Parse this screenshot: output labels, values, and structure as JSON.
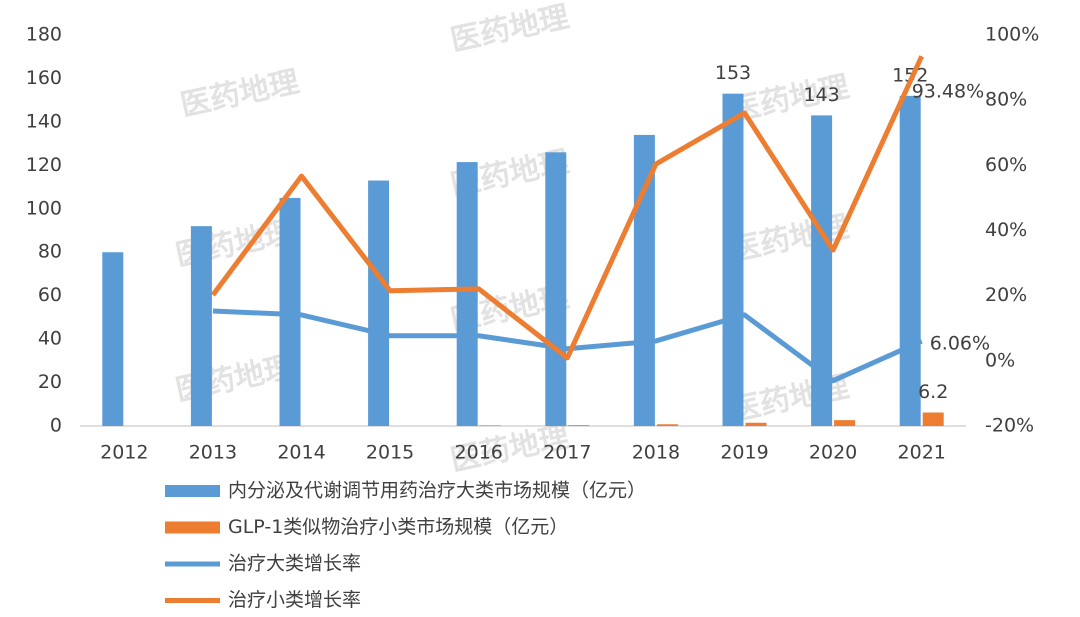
{
  "chart_data": {
    "type": "bar",
    "watermark": "医药地理",
    "categories": [
      "2012",
      "2013",
      "2014",
      "2015",
      "2016",
      "2017",
      "2018",
      "2019",
      "2020",
      "2021"
    ],
    "ylim": [
      0,
      180
    ],
    "yticks": [
      0,
      20,
      40,
      60,
      80,
      100,
      120,
      140,
      160,
      180
    ],
    "y2lim": [
      -20,
      100
    ],
    "y2ticks": [
      {
        "value": -20,
        "label": "-20%"
      },
      {
        "value": 0,
        "label": "0%"
      },
      {
        "value": 20,
        "label": "20%"
      },
      {
        "value": 40,
        "label": "40%"
      },
      {
        "value": 60,
        "label": "60%"
      },
      {
        "value": 80,
        "label": "80%"
      },
      {
        "value": 100,
        "label": "100%"
      }
    ],
    "series": [
      {
        "name": "内分泌及代谢调节用药治疗大类市场规模（亿元）",
        "type": "bar",
        "color": "#5b9bd5",
        "values": [
          80,
          92,
          105,
          113,
          121.5,
          126,
          134,
          153,
          143,
          152
        ],
        "value_labels": [
          null,
          null,
          null,
          null,
          null,
          null,
          null,
          "153",
          "143",
          "152"
        ]
      },
      {
        "name": "GLP-1类似物治疗小类市场规模（亿元）",
        "type": "bar",
        "color": "#ed7d31",
        "values": [
          0,
          0,
          0,
          0,
          0.3,
          0.4,
          0.8,
          1.5,
          2.7,
          6.2
        ],
        "value_labels": [
          null,
          null,
          null,
          null,
          null,
          null,
          null,
          null,
          null,
          "6.2"
        ]
      },
      {
        "name": "治疗大类增长率",
        "type": "line",
        "axis": "y2",
        "color": "#5b9bd5",
        "values": [
          null,
          15.3,
          14.1,
          7.7,
          7.7,
          3.7,
          6.1,
          14.1,
          -6.1,
          6.06
        ],
        "value_labels": [
          null,
          null,
          null,
          null,
          null,
          null,
          null,
          null,
          null,
          "6.06%"
        ]
      },
      {
        "name": "治疗小类增长率",
        "type": "line",
        "axis": "y2",
        "color": "#ed7d31",
        "values": [
          null,
          20.2,
          56.7,
          21.5,
          22.1,
          0.9,
          60.4,
          76.1,
          34,
          93.48
        ],
        "value_labels": [
          null,
          null,
          null,
          null,
          null,
          null,
          null,
          null,
          null,
          "93.48%"
        ]
      }
    ]
  }
}
